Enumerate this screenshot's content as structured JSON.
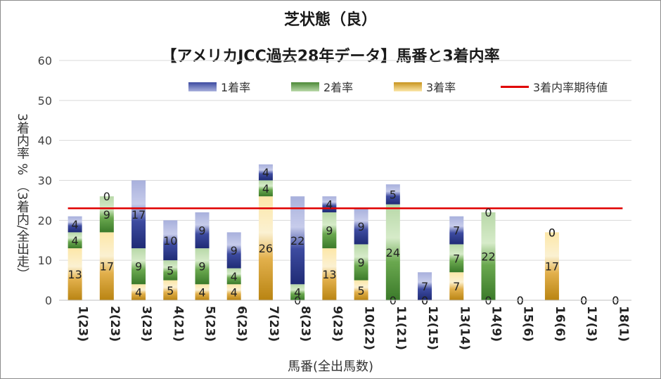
{
  "chart_data": {
    "type": "bar",
    "title": "芝状態（良）",
    "subtitle": "【アメリカJCC過去28年データ】馬番と3着内率",
    "xlabel": "馬番(全出馬数)",
    "ylabel": "3着内率 %  （3着内/全出走）",
    "ylim": [
      0,
      60
    ],
    "yticks": [
      0,
      10,
      20,
      30,
      40,
      50,
      60
    ],
    "categories": [
      "1(23)",
      "2(23)",
      "3(23)",
      "4(21)",
      "5(23)",
      "6(23)",
      "7(23)",
      "8(23)",
      "9(23)",
      "10(22)",
      "11(21)",
      "12(15)",
      "13(14)",
      "14(9)",
      "15(6)",
      "16(6)",
      "17(3)",
      "18(1)"
    ],
    "series": [
      {
        "name": "3着率",
        "values": [
          13,
          17,
          4,
          5,
          4,
          4,
          26,
          0,
          13,
          5,
          0,
          0,
          7,
          0,
          0,
          17,
          0,
          0
        ],
        "color": "#d9a53f"
      },
      {
        "name": "2着率",
        "values": [
          4,
          9,
          9,
          5,
          9,
          4,
          4,
          4,
          9,
          9,
          24,
          0,
          7,
          22,
          0,
          0,
          0,
          0
        ],
        "color": "#6aa84f"
      },
      {
        "name": "1着率",
        "values": [
          4,
          0,
          17,
          10,
          9,
          9,
          4,
          22,
          4,
          9,
          5,
          7,
          7,
          0,
          0,
          0,
          0,
          0
        ],
        "color": "#3d4ba0"
      }
    ],
    "reference_line": {
      "name": "3着内率期待値",
      "value": 23,
      "color": "#e00000"
    },
    "grid": true,
    "legend": "top"
  }
}
